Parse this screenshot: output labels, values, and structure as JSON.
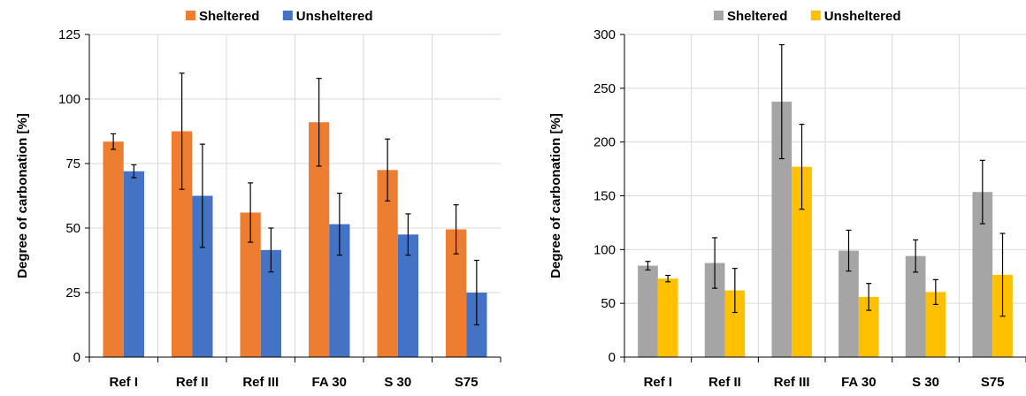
{
  "chart_data": [
    {
      "type": "bar",
      "title": "",
      "xlabel": "",
      "ylabel": "Degree of carbonation [%]",
      "ylim": [
        0,
        125
      ],
      "yticks": [
        0,
        25,
        50,
        75,
        100,
        125
      ],
      "grid": true,
      "legend_position": "top",
      "categories": [
        "Ref I",
        "Ref II",
        "Ref III",
        "FA 30",
        "S 30",
        "S75"
      ],
      "series": [
        {
          "name": "Sheltered",
          "color": "#ED7D31",
          "values": [
            83.5,
            87.5,
            56,
            91,
            72.5,
            49.5
          ],
          "error": [
            3,
            22.5,
            11.5,
            17,
            12,
            9.5
          ]
        },
        {
          "name": "Unsheltered",
          "color": "#4472C4",
          "values": [
            72,
            62.5,
            41.5,
            51.5,
            47.5,
            25
          ],
          "error": [
            2.5,
            20,
            8.5,
            12,
            8,
            12.5
          ]
        }
      ]
    },
    {
      "type": "bar",
      "title": "",
      "xlabel": "",
      "ylabel": "Degree of carbonation [%]",
      "ylim": [
        0,
        300
      ],
      "yticks": [
        0,
        50,
        100,
        150,
        200,
        250,
        300
      ],
      "grid": true,
      "legend_position": "top",
      "categories": [
        "Ref I",
        "Ref II",
        "Ref III",
        "FA 30",
        "S 30",
        "S75"
      ],
      "series": [
        {
          "name": "Sheltered",
          "color": "#A5A5A5",
          "values": [
            85,
            87.5,
            237.5,
            99,
            94,
            153.5
          ],
          "error": [
            4,
            23.5,
            53,
            19,
            15,
            29.5
          ]
        },
        {
          "name": "Unsheltered",
          "color": "#FFC000",
          "values": [
            73,
            62,
            177,
            56,
            60.5,
            76.5
          ],
          "error": [
            3,
            20.5,
            39.5,
            12.5,
            11.5,
            38.5
          ]
        }
      ]
    }
  ]
}
